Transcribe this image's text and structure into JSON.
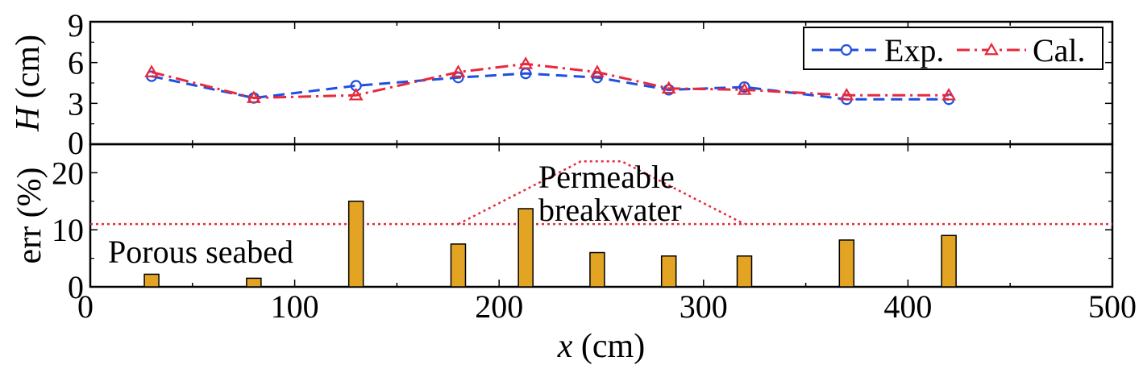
{
  "chart_data": {
    "type": "line+bar",
    "x": [
      30,
      80,
      130,
      180,
      213,
      248,
      283,
      320,
      370,
      420
    ],
    "xlabel": {
      "var": "x",
      "unit": "(cm)"
    },
    "xlim": [
      0,
      500
    ],
    "xticks": [
      "0",
      "100",
      "200",
      "300",
      "400",
      "500"
    ],
    "top_panel": {
      "ylabel": {
        "var": "H",
        "unit": "(cm)"
      },
      "ylim": [
        0,
        9
      ],
      "yticks": [
        "0",
        "3",
        "6",
        "9"
      ],
      "series": [
        {
          "name": "Exp.",
          "color": "#1f4fe0",
          "marker": "circle",
          "line": "dashed",
          "values": [
            5.0,
            3.4,
            4.3,
            4.9,
            5.2,
            4.9,
            4.0,
            4.2,
            3.3,
            3.3
          ]
        },
        {
          "name": "Cal.",
          "color": "#e8283c",
          "marker": "triangle",
          "line": "dashdot",
          "values": [
            5.3,
            3.4,
            3.6,
            5.3,
            5.9,
            5.3,
            4.1,
            4.0,
            3.6,
            3.6
          ]
        }
      ],
      "legend": "top-right"
    },
    "bottom_panel": {
      "ylabel": "err (%)",
      "ylim": [
        0,
        25
      ],
      "yticks": [
        "0",
        "10",
        "20"
      ],
      "bar_color": "#e3a423",
      "values": [
        2.2,
        1.5,
        15.0,
        7.5,
        13.7,
        6.0,
        5.4,
        5.4,
        8.2,
        9.0
      ],
      "reference_line": {
        "y": 11,
        "color": "#e8283c"
      },
      "breakwater_profile": {
        "x": [
          180,
          240,
          260,
          320
        ],
        "y": [
          11,
          22,
          22,
          11
        ],
        "color": "#e8283c"
      },
      "annotations": {
        "porous_seabed": "Porous seabed",
        "permeable": "Permeable",
        "breakwater": "breakwater"
      }
    }
  }
}
